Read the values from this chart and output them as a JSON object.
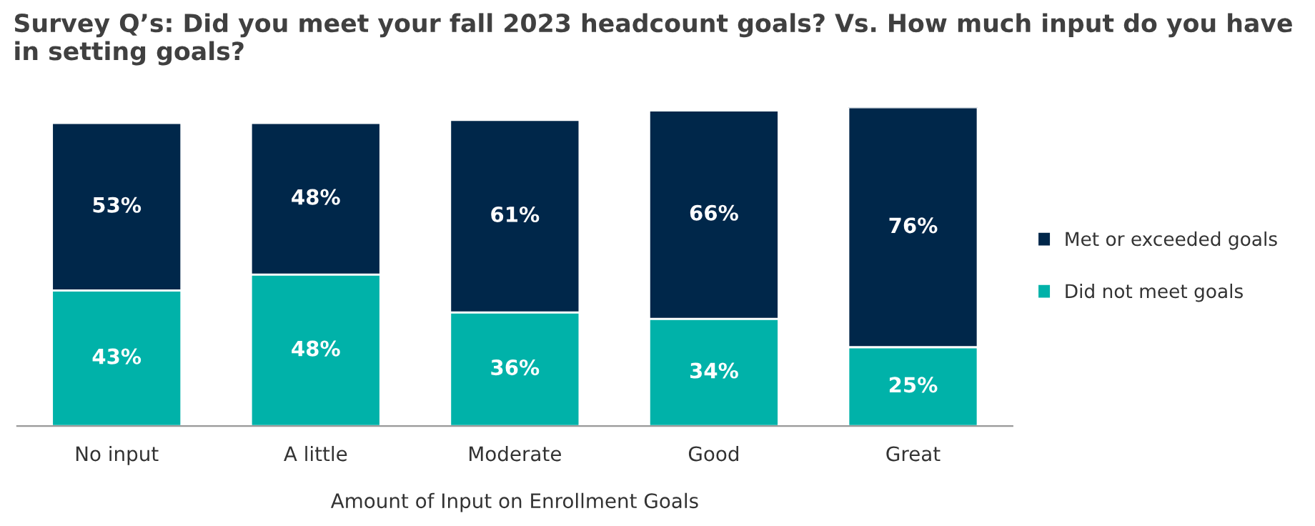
{
  "chart_data": {
    "type": "bar",
    "stacked": true,
    "title": "Survey Q’s: Did you meet your fall 2023 headcount goals? Vs. How much input do you have in setting goals?",
    "xlabel": "Amount of Input on Enrollment Goals",
    "categories": [
      "No input",
      "A little",
      "Moderate",
      "Good",
      "Great"
    ],
    "series": [
      {
        "name": "Did not meet goals",
        "color": "#00b2a9",
        "values": [
          43,
          48,
          36,
          34,
          25
        ],
        "value_labels": [
          "43%",
          "48%",
          "36%",
          "34%",
          "25%"
        ]
      },
      {
        "name": "Met or exceeded goals",
        "color": "#00274a",
        "values": [
          53,
          48,
          61,
          66,
          76
        ],
        "value_labels": [
          "53%",
          "48%",
          "61%",
          "66%",
          "76%"
        ]
      }
    ],
    "legend": "right",
    "grid": false
  }
}
